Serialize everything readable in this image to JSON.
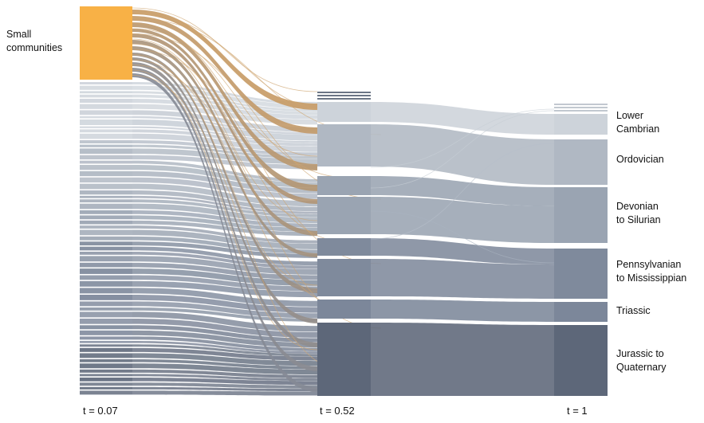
{
  "left_label": [
    "Small",
    "communities"
  ],
  "right_labels": [
    [
      "Lower",
      "Cambrian"
    ],
    [
      "Ordovician"
    ],
    [
      "Devonian",
      "to Silurian"
    ],
    [
      "Pennsylvanian",
      "to Mississippian"
    ],
    [
      "Triassic"
    ],
    [
      "Jurassic to",
      "Quaternary"
    ]
  ],
  "time_labels": [
    "t = 0.07",
    "t = 0.52",
    "t = 1"
  ],
  "colors": {
    "small_communities": "#f8b146",
    "lower_cambrian": "#cdd3da",
    "ordovician": "#b0b8c3",
    "devonian_silurian": "#9aa4b2",
    "pennsylvanian_mississippian": "#7f8a9c",
    "triassic": "#7c879a",
    "jurassic_quaternary": "#5d6779"
  }
}
